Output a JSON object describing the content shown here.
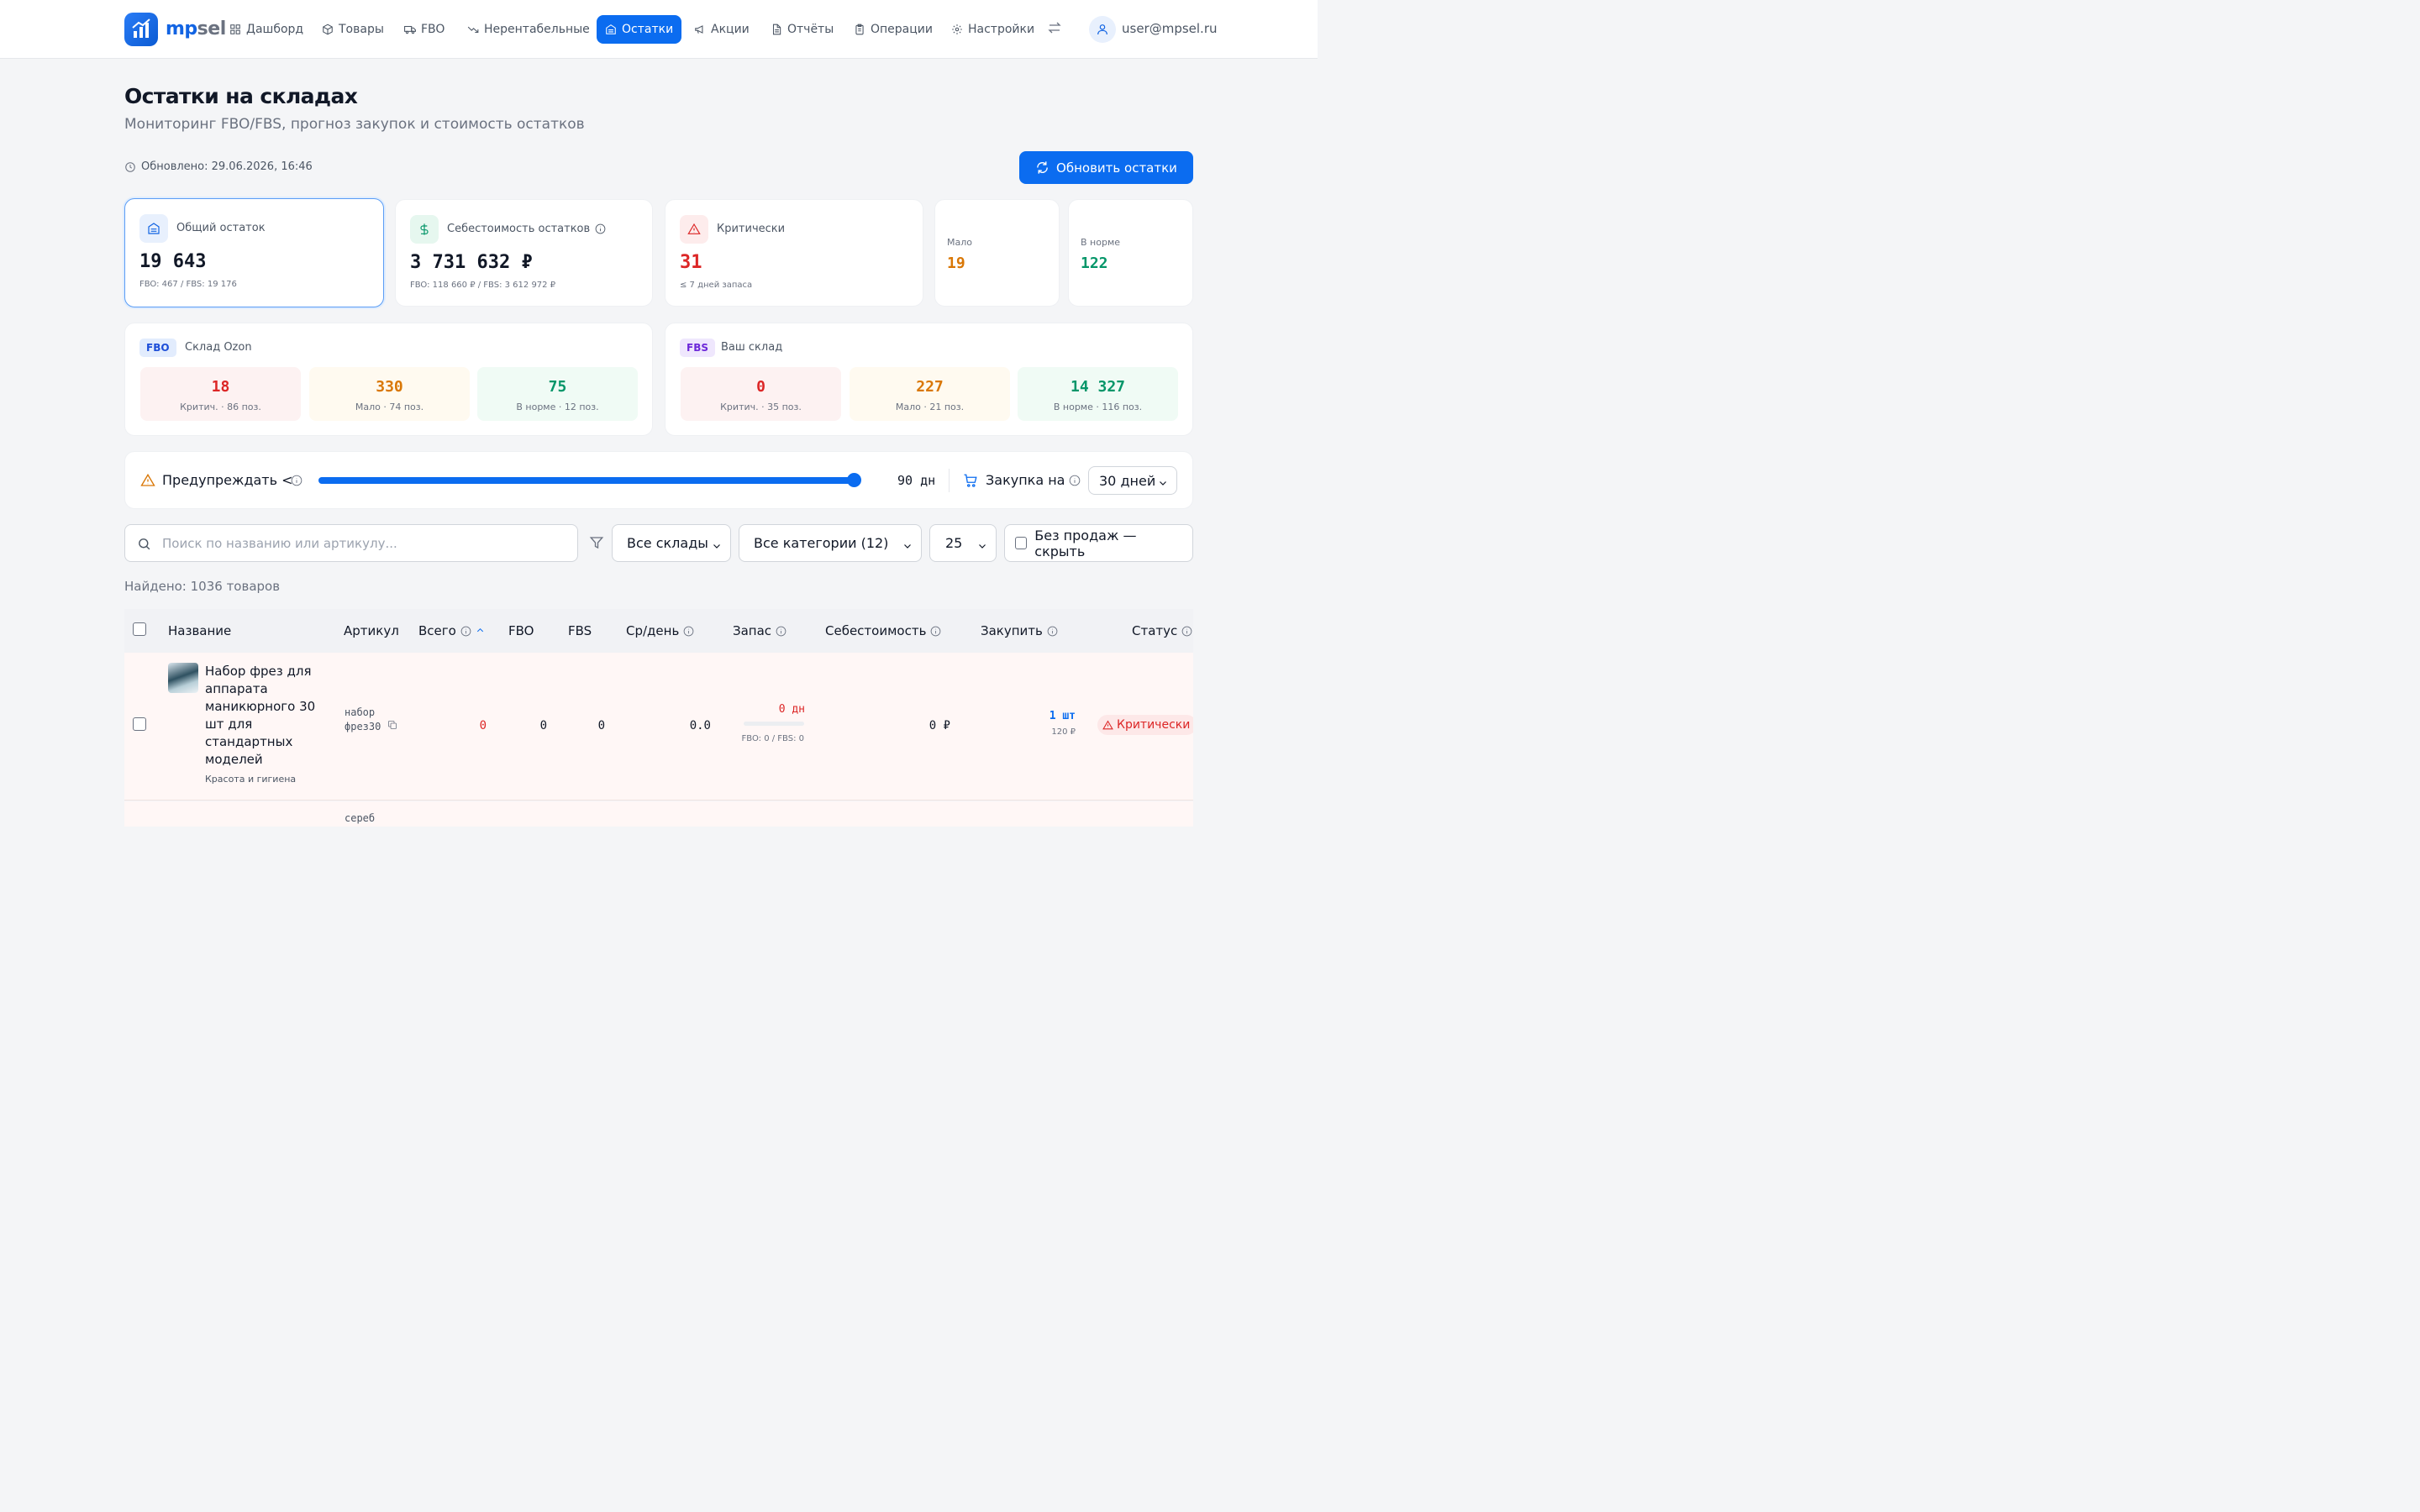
{
  "app": {
    "logo_prefix": "mp",
    "logo_suffix": "sel"
  },
  "nav": [
    {
      "label": "Дашборд",
      "icon": "grid-icon"
    },
    {
      "label": "Товары",
      "icon": "box-icon"
    },
    {
      "label": "FBO",
      "icon": "truck-icon"
    },
    {
      "label": "Нерентабельные",
      "icon": "trend-down-icon"
    },
    {
      "label": "Остатки",
      "icon": "warehouse-icon",
      "active": true
    },
    {
      "label": "Акции",
      "icon": "megaphone-icon"
    },
    {
      "label": "Отчёты",
      "icon": "file-icon"
    },
    {
      "label": "Операции",
      "icon": "clipboard-icon"
    },
    {
      "label": "Настройки",
      "icon": "gear-icon"
    }
  ],
  "user": {
    "email": "user@mpsel.ru"
  },
  "page": {
    "title": "Остатки на складах",
    "subtitle": "Мониторинг FBO/FBS, прогноз закупок и стоимость остатков",
    "updated": "Обновлено: 29.06.2026, 16:46",
    "refresh_label": "Обновить остатки"
  },
  "summary": {
    "total": {
      "label": "Общий остаток",
      "value": "19 643",
      "note": "FBO: 467 / FBS: 19 176"
    },
    "cost": {
      "label": "Себестоимость остатков",
      "value": "3 731 632 ₽",
      "note": "FBO: 118 660 ₽ / FBS: 3 612 972 ₽"
    },
    "critical": {
      "label": "Критически",
      "value": "31",
      "note": "≤ 7 дней запаса"
    },
    "low": {
      "label": "Мало",
      "value": "19"
    },
    "normal": {
      "label": "В норме",
      "value": "122"
    }
  },
  "warehouses": {
    "fbo": {
      "badge": "FBO",
      "name": "Склад Ozon",
      "tiles": [
        {
          "value": "18",
          "label": "Критич. · 86 поз."
        },
        {
          "value": "330",
          "label": "Мало · 74 поз."
        },
        {
          "value": "75",
          "label": "В норме · 12 поз."
        }
      ]
    },
    "fbs": {
      "badge": "FBS",
      "name": "Ваш склад",
      "tiles": [
        {
          "value": "0",
          "label": "Критич. · 35 поз."
        },
        {
          "value": "227",
          "label": "Мало · 21 поз."
        },
        {
          "value": "14 327",
          "label": "В норме · 116 поз."
        }
      ]
    }
  },
  "threshold": {
    "warn_label": "Предупреждать <",
    "slider_value": "90 дн",
    "slider_fraction": 1.0,
    "purchase_label": "Закупка на",
    "purchase_select": "30 дней"
  },
  "filters": {
    "search_placeholder": "Поиск по названию или артикулу...",
    "warehouse_select": "Все склады",
    "category_select": "Все категории (12)",
    "page_size": "25",
    "hide_no_sales_label": "Без продаж — скрыть"
  },
  "found": "Найдено: 1036 товаров",
  "table": {
    "headers": {
      "name": "Название",
      "sku": "Артикул",
      "total": "Всего",
      "fbo": "FBO",
      "fbs": "FBS",
      "per_day": "Ср/день",
      "stock": "Запас",
      "cost": "Себестоимость",
      "buy": "Закупить",
      "status": "Статус"
    },
    "rows": [
      {
        "name": "Набор фрез для аппарата маникюрного 30 шт для стандартных моделей",
        "category": "Красота и гигиена",
        "sku": "набор фрез30",
        "total": "0",
        "fbo": "0",
        "fbs": "0",
        "per_day": "0.0",
        "stock_days": "0 дн",
        "stock_note": "FBO: 0 / FBS: 0",
        "cost": "0 ₽",
        "buy_qty": "1 шт",
        "buy_cost": "120 ₽",
        "status": "Критически"
      },
      {
        "sku": "сереб"
      }
    ]
  },
  "colors": {
    "accent": "#0b6cf0",
    "critical": "#dc2626",
    "low": "#d97706",
    "normal": "#059669",
    "row_critical_bg": "#fff7f6"
  }
}
